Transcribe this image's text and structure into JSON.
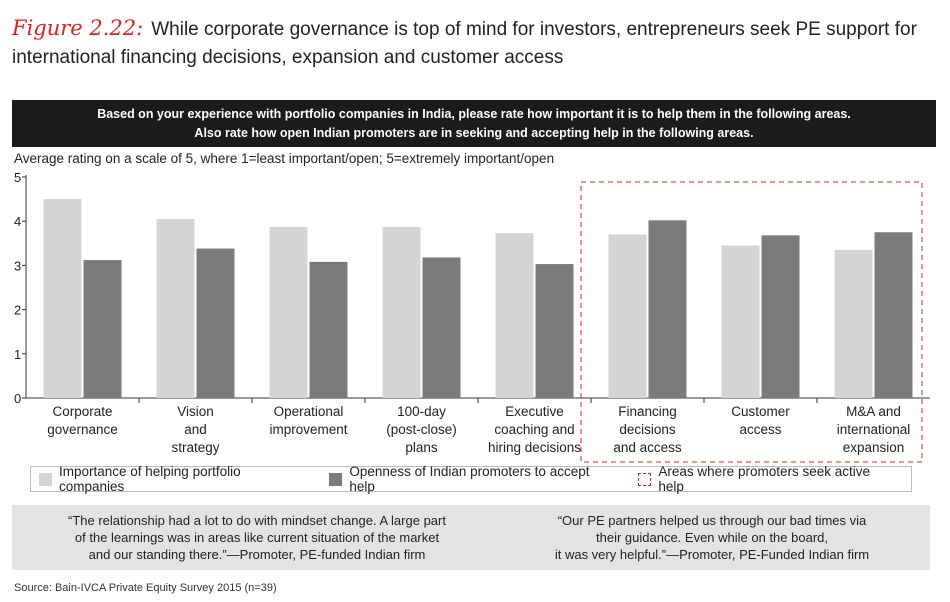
{
  "figure": {
    "label": "Figure 2.22:",
    "title": "While corporate governance is top of mind for investors, entrepreneurs seek PE support for international financing decisions, expansion and customer access"
  },
  "banner": {
    "line1": "Based on your experience with portfolio companies in India, please rate how important it is to help them in the following areas.",
    "line2": "Also rate how open Indian promoters are in seeking and accepting help in the following areas."
  },
  "chart_data": {
    "type": "bar",
    "subtitle": "Average rating on a scale of 5, where 1=least important/open; 5=extremely important/open",
    "categories": [
      [
        "Corporate",
        "governance"
      ],
      [
        "Vision",
        "and",
        "strategy"
      ],
      [
        "Operational",
        "improvement"
      ],
      [
        "100-day",
        "(post-close)",
        "plans"
      ],
      [
        "Executive",
        "coaching and",
        "hiring decisions"
      ],
      [
        "Financing",
        "decisions",
        "and access"
      ],
      [
        "Customer",
        "access"
      ],
      [
        "M&A and",
        "international",
        "expansion"
      ]
    ],
    "series": [
      {
        "name": "Importance of helping portfolio companies",
        "color": "#d4d4d4",
        "values": [
          4.5,
          4.05,
          3.87,
          3.87,
          3.73,
          3.7,
          3.45,
          3.35
        ]
      },
      {
        "name": "Openness of Indian promoters to accept help",
        "color": "#7b7b7b",
        "values": [
          3.12,
          3.38,
          3.08,
          3.18,
          3.03,
          4.02,
          3.68,
          3.75
        ]
      }
    ],
    "yticks": [
      "0",
      "1",
      "2",
      "3",
      "4",
      "5"
    ],
    "ylim": [
      0,
      5
    ],
    "highlight": {
      "categories_from_index": 5,
      "label": "Areas where promoters seek active help",
      "color": "#e0201b"
    }
  },
  "legend": {
    "importance": "Importance of helping portfolio companies",
    "openness": "Openness of Indian promoters to accept help",
    "areas": "Areas where promoters seek active help"
  },
  "quotes": {
    "left": [
      "“The relationship had a lot to do with mindset change. A large part",
      "of the learnings was in areas like current situation of the market",
      "and our standing there.”—Promoter, PE-funded Indian firm"
    ],
    "right": [
      "“Our PE partners helped us through our bad times via",
      "their guidance. Even while on the board,",
      "it was very helpful.”—Promoter, PE-Funded Indian firm"
    ]
  },
  "source": "Source: Bain-IVCA Private Equity Survey 2015 (n=39)"
}
